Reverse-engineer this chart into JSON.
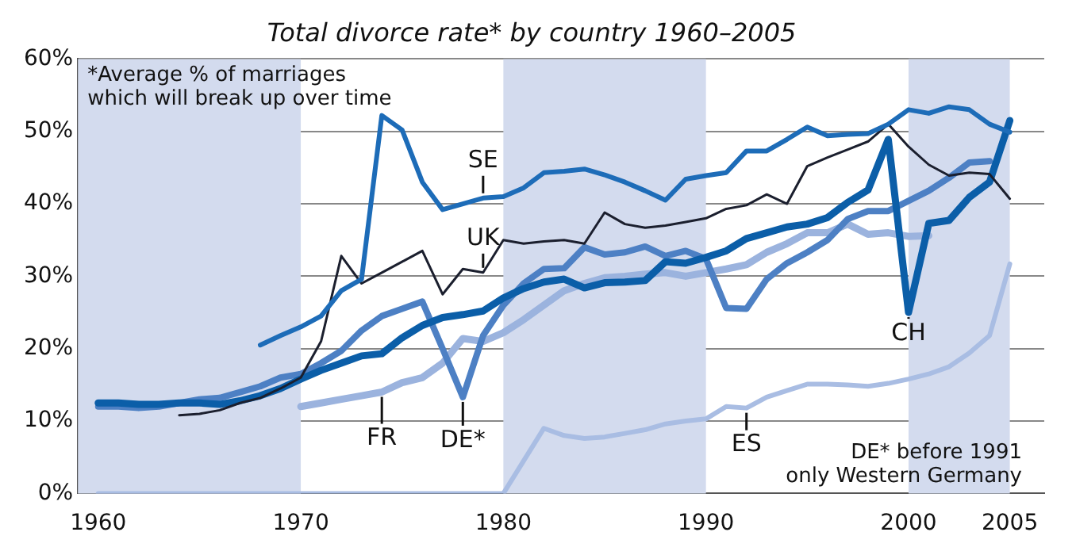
{
  "chart_data": {
    "type": "line",
    "title": "Total divorce rate* by country 1960–2005",
    "annotations": [
      "*Average % of marriages which will break up over time",
      "DE* before 1991 only Western Germany"
    ],
    "xlim": [
      1959,
      2006.7
    ],
    "xticks": [
      1960,
      1970,
      1980,
      1990,
      2000,
      2005
    ],
    "ylim": [
      0,
      60
    ],
    "yticks": [
      {
        "value": 0,
        "label": "0%"
      },
      {
        "value": 10,
        "label": "10%"
      },
      {
        "value": 20,
        "label": "20%"
      },
      {
        "value": 30,
        "label": "30%"
      },
      {
        "value": 40,
        "label": "40%"
      },
      {
        "value": 50,
        "label": "50%"
      },
      {
        "value": 60,
        "label": "60%"
      }
    ],
    "grid": "y",
    "legend": false,
    "marker": "none",
    "bands": [
      {
        "axis": "x",
        "from": 1959,
        "to": 1970,
        "color": "#d3dbee"
      },
      {
        "axis": "x",
        "from": 1980,
        "to": 1990,
        "color": "#d3dbee"
      },
      {
        "axis": "x",
        "from": 2000,
        "to": 2005,
        "color": "#d3dbee"
      }
    ],
    "series": [
      {
        "name": "SE",
        "color": "#1d6cb8",
        "x": [
          1968,
          1969,
          1970,
          1971,
          1972,
          1973,
          1974,
          1975,
          1976,
          1977,
          1978,
          1979,
          1980,
          1981,
          1982,
          1983,
          1984,
          1985,
          1986,
          1987,
          1988,
          1989,
          1990,
          1991,
          1992,
          1993,
          1994,
          1995,
          1996,
          1997,
          1998,
          1999,
          2000,
          2001,
          2002,
          2003,
          2004,
          2005
        ],
        "values": [
          20.5,
          21.8,
          23,
          24.5,
          28,
          29.6,
          52.2,
          50.2,
          43,
          39.2,
          40,
          40.8,
          41,
          42.2,
          44.3,
          44.5,
          44.8,
          44,
          43,
          41.8,
          40.5,
          43.4,
          43.9,
          44.3,
          47.3,
          47.3,
          48.9,
          50.6,
          49.4,
          49.6,
          49.7,
          51,
          53,
          52.5,
          53.4,
          53,
          51,
          49.9
        ]
      },
      {
        "name": "UK",
        "color": "#1b1f2e",
        "x": [
          1964,
          1965,
          1966,
          1967,
          1968,
          1969,
          1970,
          1971,
          1972,
          1973,
          1974,
          1975,
          1976,
          1977,
          1978,
          1979,
          1980,
          1981,
          1982,
          1983,
          1984,
          1985,
          1986,
          1987,
          1988,
          1989,
          1990,
          1991,
          1992,
          1993,
          1994,
          1995,
          1996,
          1997,
          1998,
          1999,
          2000,
          2001,
          2002,
          2003,
          2004,
          2005
        ],
        "values": [
          10.8,
          11,
          11.5,
          12.5,
          13.2,
          14.5,
          16,
          21,
          32.8,
          29,
          30.5,
          32,
          33.5,
          27.5,
          31,
          30.5,
          35,
          34.5,
          34.8,
          35,
          34.5,
          38.8,
          37.2,
          36.7,
          37,
          37.5,
          38,
          39.3,
          39.8,
          41.3,
          40,
          45.2,
          46.4,
          47.5,
          48.6,
          51,
          47.9,
          45.4,
          43.9,
          44.3,
          44.1,
          40.7
        ]
      },
      {
        "name": "CH",
        "color": "#0b5ea8",
        "x": [
          1960,
          1961,
          1962,
          1963,
          1964,
          1965,
          1966,
          1967,
          1968,
          1969,
          1970,
          1971,
          1972,
          1973,
          1974,
          1975,
          1976,
          1977,
          1978,
          1979,
          1980,
          1981,
          1982,
          1983,
          1984,
          1985,
          1986,
          1987,
          1988,
          1989,
          1990,
          1991,
          1992,
          1993,
          1994,
          1995,
          1996,
          1997,
          1998,
          1999,
          2000,
          2001,
          2002,
          2003,
          2004,
          2005
        ],
        "values": [
          12.5,
          12.5,
          12.3,
          12.3,
          12.5,
          12.5,
          12.3,
          12.8,
          13.5,
          14.5,
          15.8,
          17,
          18,
          19,
          19.3,
          21.5,
          23.2,
          24.3,
          24.7,
          25.2,
          27,
          28.3,
          29.2,
          29.6,
          28.4,
          29.1,
          29.2,
          29.4,
          32,
          31.8,
          32.6,
          33.5,
          35.2,
          36,
          36.8,
          37.2,
          38.1,
          40.2,
          41.9,
          48.9,
          25,
          37.3,
          37.7,
          40.9,
          43,
          51.5
        ]
      },
      {
        "name": "DE*",
        "color": "#4d80c4",
        "x": [
          1960,
          1961,
          1962,
          1963,
          1964,
          1965,
          1966,
          1967,
          1968,
          1969,
          1970,
          1971,
          1972,
          1973,
          1974,
          1975,
          1976,
          1977,
          1978,
          1979,
          1980,
          1981,
          1982,
          1983,
          1984,
          1985,
          1986,
          1987,
          1988,
          1989,
          1990,
          1991,
          1992,
          1993,
          1994,
          1995,
          1996,
          1997,
          1998,
          1999,
          2000,
          2001,
          2002,
          2003,
          2004
        ],
        "values": [
          12,
          12,
          11.8,
          12,
          12.5,
          13,
          13.2,
          14,
          14.8,
          16,
          16.5,
          18,
          19.7,
          22.5,
          24.5,
          25.5,
          26.5,
          20,
          13.3,
          21.8,
          26,
          29,
          31,
          31.1,
          34,
          33,
          33.3,
          34.1,
          32.8,
          33.5,
          32.4,
          25.6,
          25.5,
          29.6,
          31.8,
          33.3,
          35,
          37.9,
          39,
          39,
          40.4,
          41.8,
          43.6,
          45.7,
          45.9
        ]
      },
      {
        "name": "FR",
        "color": "#9bb3de",
        "x": [
          1970,
          1971,
          1972,
          1973,
          1974,
          1975,
          1976,
          1977,
          1978,
          1979,
          1980,
          1981,
          1982,
          1983,
          1984,
          1985,
          1986,
          1987,
          1988,
          1989,
          1990,
          1991,
          1992,
          1993,
          1994,
          1995,
          1996,
          1997,
          1998,
          1999,
          2000,
          2001
        ],
        "values": [
          12,
          12.5,
          13,
          13.5,
          14,
          15.3,
          16,
          18,
          21.4,
          21,
          22.2,
          24,
          26,
          28,
          29,
          29.8,
          30,
          30.3,
          30.5,
          30,
          30.5,
          31,
          31.6,
          33.3,
          34.5,
          36,
          36,
          37.2,
          35.8,
          36,
          35.5,
          35.6
        ]
      },
      {
        "name": "ES",
        "color": "#a9bde3",
        "x": [
          1960,
          1970,
          1980,
          1982,
          1983,
          1984,
          1985,
          1986,
          1987,
          1988,
          1989,
          1990,
          1991,
          1992,
          1993,
          1994,
          1995,
          1996,
          1997,
          1998,
          1999,
          2000,
          2001,
          2002,
          2003,
          2004,
          2005
        ],
        "values": [
          0,
          0,
          0,
          9,
          8,
          7.6,
          7.8,
          8.3,
          8.8,
          9.6,
          10,
          10.3,
          12,
          11.8,
          13.3,
          14.2,
          15.1,
          15.1,
          15,
          14.8,
          15.2,
          15.8,
          16.5,
          17.5,
          19.4,
          21.8,
          31.7
        ]
      }
    ]
  }
}
